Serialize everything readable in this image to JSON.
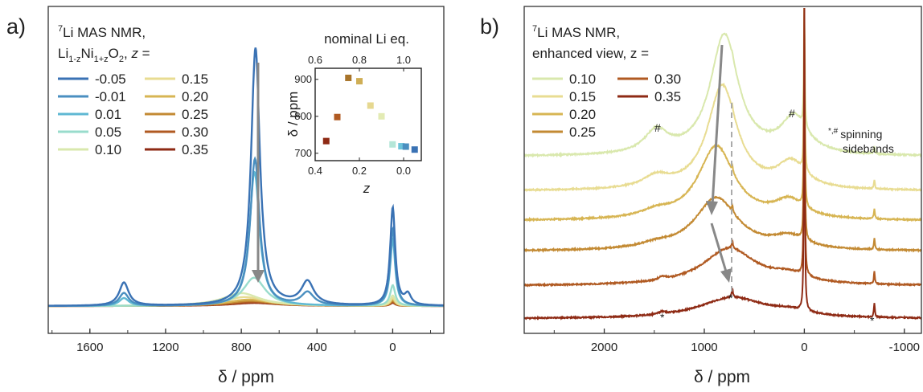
{
  "panel_a": {
    "label": "a)",
    "legend_title_1": "Li MAS NMR,",
    "legend_title_1_sup": "7",
    "legend_title_2_parts": [
      "Li",
      "1-z",
      "Ni",
      "1+z",
      "O",
      "2",
      ", ",
      "z",
      " ="
    ],
    "chart_data": {
      "type": "line",
      "xlabel": "δ / ppm",
      "ylabel": "",
      "xlim": [
        1820,
        -270
      ],
      "x_reversed": true,
      "xticks": [
        1600,
        1200,
        800,
        400,
        0
      ],
      "series": [
        {
          "name": "-0.05",
          "color": "#3a72b4",
          "peaks": [
            {
              "x": 725,
              "h": 1.0,
              "w": 28
            },
            {
              "x": 0,
              "h": 0.38,
              "w": 16
            },
            {
              "x": 450,
              "h": 0.09,
              "w": 40
            },
            {
              "x": 1420,
              "h": 0.09,
              "w": 30
            },
            {
              "x": -80,
              "h": 0.04,
              "w": 20
            }
          ]
        },
        {
          "name": "-0.01",
          "color": "#4a8fc0",
          "peaks": [
            {
              "x": 728,
              "h": 0.57,
              "w": 30
            },
            {
              "x": 0,
              "h": 0.3,
              "w": 16
            },
            {
              "x": 450,
              "h": 0.05,
              "w": 40
            },
            {
              "x": 1420,
              "h": 0.05,
              "w": 30
            }
          ]
        },
        {
          "name": "0.01",
          "color": "#5fb8d3",
          "peaks": [
            {
              "x": 730,
              "h": 0.52,
              "w": 32
            },
            {
              "x": 0,
              "h": 0.26,
              "w": 16
            },
            {
              "x": 1420,
              "h": 0.03,
              "w": 30
            }
          ]
        },
        {
          "name": "0.05",
          "color": "#99dccc",
          "peaks": [
            {
              "x": 732,
              "h": 0.11,
              "w": 70
            },
            {
              "x": 0,
              "h": 0.08,
              "w": 16
            }
          ]
        },
        {
          "name": "0.10",
          "color": "#d9e8ad",
          "peaks": [
            {
              "x": 800,
              "h": 0.05,
              "w": 120
            },
            {
              "x": 0,
              "h": 0.04,
              "w": 16
            }
          ]
        },
        {
          "name": "0.15",
          "color": "#e8dc92",
          "peaks": [
            {
              "x": 780,
              "h": 0.035,
              "w": 130
            },
            {
              "x": 0,
              "h": 0.03,
              "w": 16
            }
          ]
        },
        {
          "name": "0.20",
          "color": "#d7b553",
          "peaks": [
            {
              "x": 760,
              "h": 0.025,
              "w": 140
            },
            {
              "x": 0,
              "h": 0.025,
              "w": 16
            }
          ]
        },
        {
          "name": "0.25",
          "color": "#c38a33",
          "peaks": [
            {
              "x": 750,
              "h": 0.02,
              "w": 150
            },
            {
              "x": 0,
              "h": 0.02,
              "w": 16
            }
          ]
        },
        {
          "name": "0.30",
          "color": "#b05a22",
          "peaks": [
            {
              "x": 740,
              "h": 0.015,
              "w": 150
            },
            {
              "x": 0,
              "h": 0.015,
              "w": 16
            }
          ]
        },
        {
          "name": "0.35",
          "color": "#8e2a14",
          "peaks": [
            {
              "x": 730,
              "h": 0.012,
              "w": 150
            },
            {
              "x": 0,
              "h": 0.012,
              "w": 16
            }
          ]
        }
      ]
    },
    "inset": {
      "top_label": "nominal Li eq.",
      "chart_data": {
        "type": "scatter",
        "xlabel": "z",
        "ylabel": "δ / ppm",
        "xlim": [
          0.4,
          -0.08
        ],
        "ylim": [
          680,
          930
        ],
        "xticks": [
          0.4,
          0.2,
          0.0
        ],
        "xtick_labels": [
          "0.4",
          "0.2",
          "0.0"
        ],
        "yticks": [
          700,
          800,
          900
        ],
        "top_ticks": [
          0.6,
          0.8,
          1.0
        ],
        "points": [
          {
            "x": 0.35,
            "y": 733,
            "color": "#8e2a14"
          },
          {
            "x": 0.3,
            "y": 798,
            "color": "#b05a22"
          },
          {
            "x": 0.25,
            "y": 904,
            "color": "#a8742a"
          },
          {
            "x": 0.2,
            "y": 895,
            "color": "#cfae55"
          },
          {
            "x": 0.15,
            "y": 829,
            "color": "#e6d890"
          },
          {
            "x": 0.1,
            "y": 800,
            "color": "#e3ebb4"
          },
          {
            "x": 0.05,
            "y": 724,
            "color": "#b4e6d8"
          },
          {
            "x": 0.01,
            "y": 719,
            "color": "#6cc3da"
          },
          {
            "x": -0.01,
            "y": 718,
            "color": "#4a8fc0"
          },
          {
            "x": -0.05,
            "y": 710,
            "color": "#3a72b4"
          }
        ]
      }
    }
  },
  "panel_b": {
    "label": "b)",
    "legend_title_1": "Li MAS NMR,",
    "legend_title_1_sup": "7",
    "legend_title_2": "enhanced view, z =",
    "annotation_sup": "*,#",
    "annotation_1": "spinning",
    "annotation_2": "sidebands",
    "hash_mark": "#",
    "star_mark": "*",
    "chart_data": {
      "type": "line",
      "xlabel": "δ / ppm",
      "ylabel": "",
      "xlim": [
        2800,
        -1170
      ],
      "x_reversed": true,
      "xticks": [
        2000,
        1000,
        0,
        -1000
      ],
      "series": [
        {
          "name": "0.10",
          "color": "#d9e8ad"
        },
        {
          "name": "0.15",
          "color": "#e8dc92"
        },
        {
          "name": "0.20",
          "color": "#d7b553"
        },
        {
          "name": "0.25",
          "color": "#c38a33"
        },
        {
          "name": "0.30",
          "color": "#b05a22"
        },
        {
          "name": "0.35",
          "color": "#8e2a14"
        }
      ]
    }
  }
}
